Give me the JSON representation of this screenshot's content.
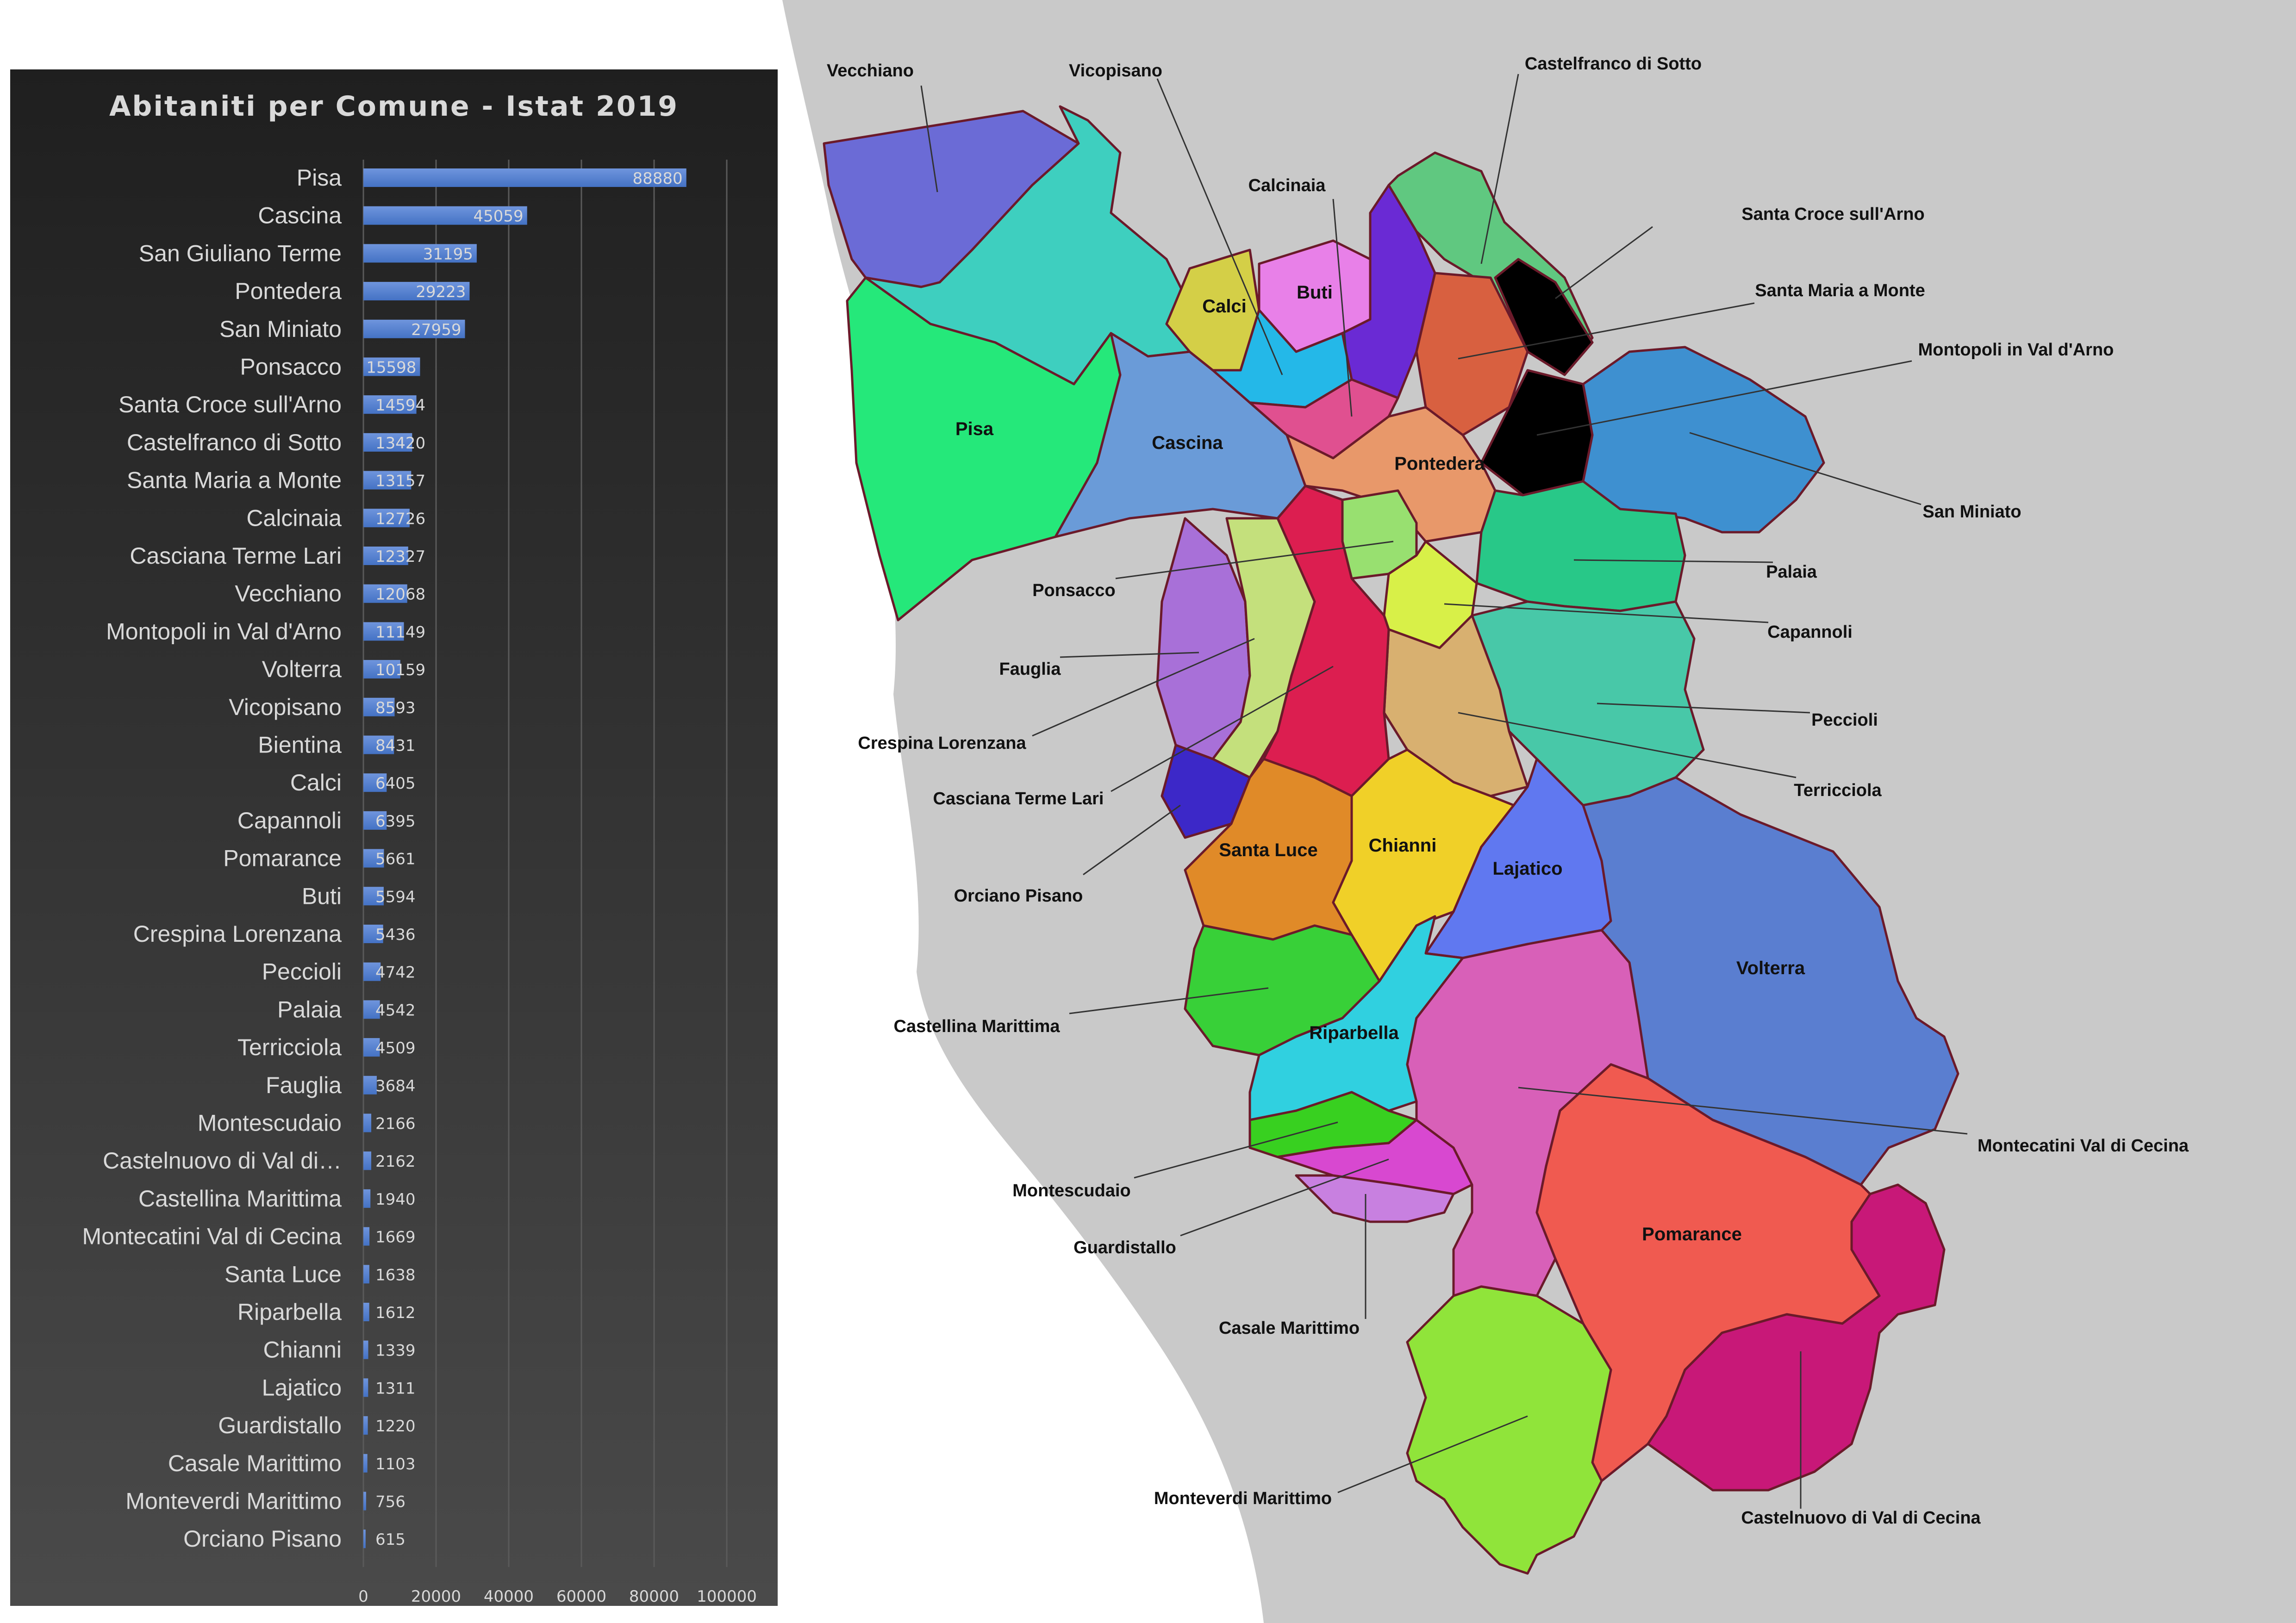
{
  "chart_data": {
    "type": "bar",
    "orientation": "horizontal",
    "title": "Abitaniti per Comune - Istat 2019",
    "categories": [
      "Pisa",
      "Cascina",
      "San Giuliano Terme",
      "Pontedera",
      "San Miniato",
      "Ponsacco",
      "Santa Croce sull'Arno",
      "Castelfranco di Sotto",
      "Santa Maria a Monte",
      "Calcinaia",
      "Casciana Terme Lari",
      "Vecchiano",
      "Montopoli in Val d'Arno",
      "Volterra",
      "Vicopisano",
      "Bientina",
      "Calci",
      "Capannoli",
      "Pomarance",
      "Buti",
      "Crespina Lorenzana",
      "Peccioli",
      "Palaia",
      "Terricciola",
      "Fauglia",
      "Montescudaio",
      "Castelnuovo di Val di…",
      "Castellina Marittima",
      "Montecatini Val di Cecina",
      "Santa Luce",
      "Riparbella",
      "Chianni",
      "Lajatico",
      "Guardistallo",
      "Casale Marittimo",
      "Monteverdi Marittimo",
      "Orciano Pisano"
    ],
    "values": [
      88880,
      45059,
      31195,
      29223,
      27959,
      15598,
      14594,
      13420,
      13157,
      12726,
      12327,
      12068,
      11149,
      10159,
      8593,
      8431,
      6405,
      6395,
      5661,
      5594,
      5436,
      4742,
      4542,
      4509,
      3684,
      2166,
      2162,
      1940,
      1669,
      1638,
      1612,
      1339,
      1311,
      1220,
      1103,
      756,
      615
    ],
    "value_labels": [
      "88880",
      "45059",
      "31195",
      "29223",
      "27959",
      "15598",
      "14594",
      "13420",
      "13157",
      "12726",
      "12327",
      "12068",
      "11149",
      "10159",
      "8593",
      "8431",
      "6405",
      "6395",
      "5661",
      "5594",
      "5436",
      "4742",
      "4542",
      "4509",
      "3684",
      "2166",
      "2162",
      "1940",
      "1669",
      "1638",
      "1612",
      "1339",
      "1311",
      "1220",
      "1103",
      "756",
      "615"
    ],
    "xticks": [
      "0",
      "20000",
      "40000",
      "60000",
      "80000",
      "100000"
    ],
    "xlim": [
      0,
      100000
    ],
    "grid": true,
    "legend": "none",
    "colors": {
      "bar": "#4472c4",
      "bar_light": "#6f95dd",
      "panel_top": "#1f1f1f",
      "panel_bottom": "#4a4a4a",
      "text": "#d9d9d9",
      "grid": "#5a5a5a"
    }
  },
  "map": {
    "colors": {
      "land": "#c9c9c9",
      "sea": "#ffffff",
      "border": "#6b1a2a",
      "line": "#333333"
    },
    "regions": [
      {
        "name": "Vecchiano",
        "color": "#6b6bd6"
      },
      {
        "name": "San Giuliano Terme",
        "color": "#3ecfbf"
      },
      {
        "name": "Pisa",
        "color": "#25e87a"
      },
      {
        "name": "Cascina",
        "color": "#6a9bd8"
      },
      {
        "name": "Calci",
        "color": "#d4cf47"
      },
      {
        "name": "Buti",
        "color": "#e880e8"
      },
      {
        "name": "Vicopisano",
        "color": "#24b8e8"
      },
      {
        "name": "Calcinaia",
        "color": "#6a2ad4"
      },
      {
        "name": "Bientina",
        "color": "#e05090"
      },
      {
        "name": "Castelfranco di Sotto",
        "color": "#60c880"
      },
      {
        "name": "Santa Croce sull'Arno",
        "color": "#e05a62"
      },
      {
        "name": "Santa Maria a Monte",
        "color": "#d86040"
      },
      {
        "name": "Montopoli in Val d'Arno",
        "color": "#7ee68a"
      },
      {
        "name": "San Miniato",
        "color": "#3e90d0"
      },
      {
        "name": "Pontedera",
        "color": "#e8986a"
      },
      {
        "name": "Ponsacco",
        "color": "#98e070"
      },
      {
        "name": "Palaia",
        "color": "#28c888"
      },
      {
        "name": "Capannoli",
        "color": "#d8f048"
      },
      {
        "name": "Peccioli",
        "color": "#48c8a8"
      },
      {
        "name": "Terricciola",
        "color": "#d8b070"
      },
      {
        "name": "Fauglia",
        "color": "#a870d8"
      },
      {
        "name": "Crespina Lorenzana",
        "color": "#c4e07c"
      },
      {
        "name": "Casciana Terme Lari",
        "color": "#dc1e50"
      },
      {
        "name": "Orciano Pisano",
        "color": "#3c28c8"
      },
      {
        "name": "Santa Luce",
        "color": "#e08a28"
      },
      {
        "name": "Chianni",
        "color": "#f0d028"
      },
      {
        "name": "Lajatico",
        "color": "#6078f0"
      },
      {
        "name": "Volterra",
        "color": "#5a7ed0"
      },
      {
        "name": "Castellina Marittima",
        "color": "#38d038"
      },
      {
        "name": "Riparbella",
        "color": "#30d0e0"
      },
      {
        "name": "Montescudaio",
        "color": "#38d020"
      },
      {
        "name": "Guardistallo",
        "color": "#d848d0"
      },
      {
        "name": "Casale Marittimo",
        "color": "#c880e0"
      },
      {
        "name": "Montecatini Val di Cecina",
        "color": "#d860b8"
      },
      {
        "name": "Pomarance",
        "color": "#f05a50"
      },
      {
        "name": "Castelnuovo di Val di Cecina",
        "color": "#c81878"
      },
      {
        "name": "Monteverdi Marittimo",
        "color": "#90e43a"
      }
    ],
    "inner_labels": [
      "Pisa",
      "Cascina",
      "Calci",
      "Buti",
      "Pontedera",
      "Santa Luce",
      "Chianni",
      "Lajatico",
      "Volterra",
      "Riparbella",
      "Pomarance"
    ],
    "callouts": [
      "Vecchiano",
      "Vicopisano",
      "Calcinaia",
      "Castelfranco di Sotto",
      "Santa Croce sull'Arno",
      "Santa Maria a Monte",
      "Montopoli in Val d'Arno",
      "San Miniato",
      "Palaia",
      "Capannoli",
      "Peccioli",
      "Terricciola",
      "Ponsacco",
      "Fauglia",
      "Crespina Lorenzana",
      "Casciana Terme Lari",
      "Orciano Pisano",
      "Castellina Marittima",
      "Montescudaio",
      "Guardistallo",
      "Casale Marittimo",
      "Montecatini Val di Cecina",
      "Castelnuovo di Val di Cecina",
      "Monteverdi Marittimo"
    ]
  }
}
